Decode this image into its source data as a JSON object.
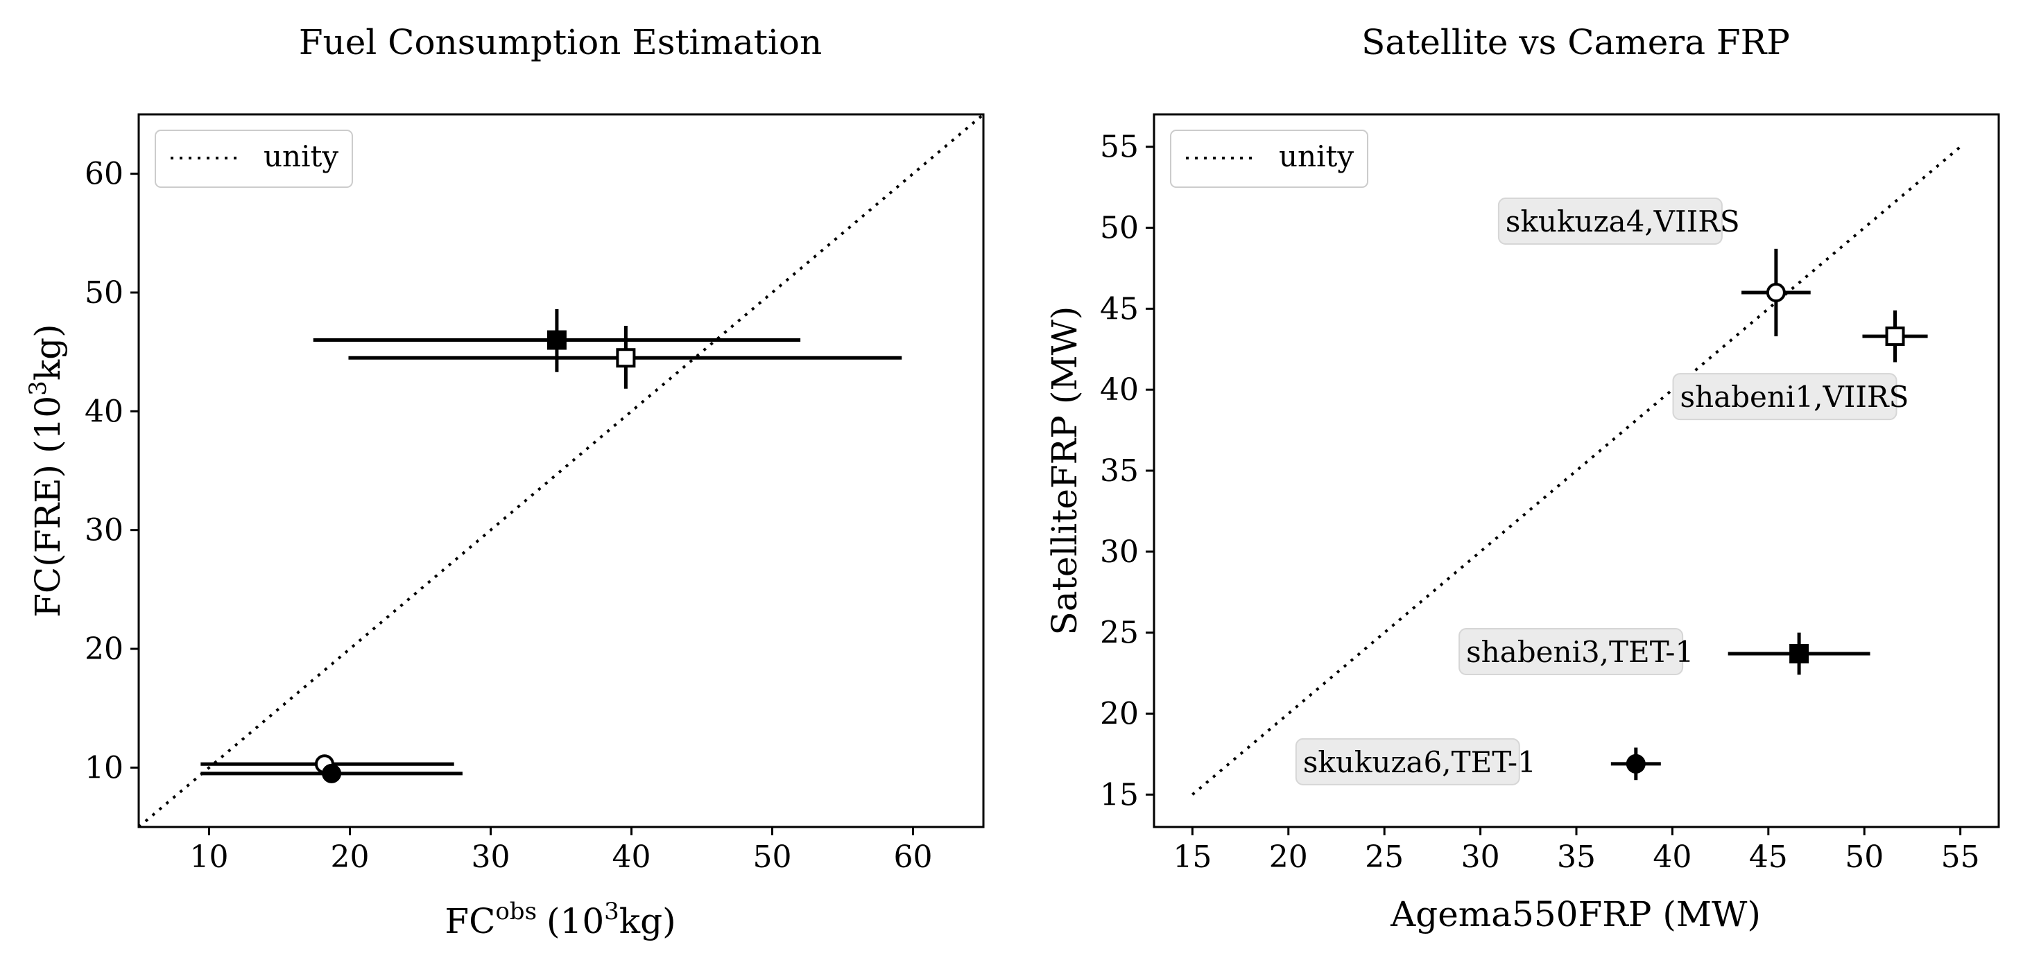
{
  "chart_data": [
    {
      "type": "scatter",
      "title": "Fuel Consumption Estimation",
      "xlabel": "FC",
      "xlabel_sup": "obs",
      "xlabel_suffix": "(10",
      "xlabel_unit_sup": "3",
      "xlabel_unit_tail": "kg)",
      "ylabel": "FC(FRE) (10",
      "ylabel_sup": "3",
      "ylabel_tail": "kg)",
      "xlim": [
        5,
        65
      ],
      "ylim": [
        5,
        65
      ],
      "xticks": [
        10,
        20,
        30,
        40,
        50,
        60
      ],
      "yticks": [
        10,
        20,
        30,
        40,
        50,
        60
      ],
      "grid": false,
      "legend": {
        "position": "top-left",
        "entries": [
          "unity"
        ]
      },
      "unity_line": {
        "x": [
          5,
          65
        ],
        "y": [
          5,
          65
        ]
      },
      "points": [
        {
          "x": 34.7,
          "y": 46.0,
          "xerr": [
            17.4,
            52.0
          ],
          "yerr": [
            43.3,
            48.6
          ],
          "marker": "square-filled"
        },
        {
          "x": 39.6,
          "y": 44.5,
          "xerr": [
            19.9,
            59.2
          ],
          "yerr": [
            41.9,
            47.2
          ],
          "marker": "square-open"
        },
        {
          "x": 18.2,
          "y": 10.3,
          "xerr": [
            9.4,
            27.4
          ],
          "yerr": [
            10.3,
            10.3
          ],
          "marker": "circle-open"
        },
        {
          "x": 18.7,
          "y": 9.5,
          "xerr": [
            9.4,
            28.0
          ],
          "yerr": [
            9.5,
            9.5
          ],
          "marker": "circle-filled"
        }
      ]
    },
    {
      "type": "scatter",
      "title": "Satellite vs Camera FRP",
      "xlabel": "Agema550FRP (MW)",
      "ylabel": "SatelliteFRP (MW)",
      "xlim": [
        13,
        57
      ],
      "ylim": [
        13,
        57
      ],
      "xticks": [
        15,
        20,
        25,
        30,
        35,
        40,
        45,
        50,
        55
      ],
      "yticks": [
        15,
        20,
        25,
        30,
        35,
        40,
        45,
        50,
        55
      ],
      "grid": false,
      "legend": {
        "position": "top-left",
        "entries": [
          "unity"
        ]
      },
      "unity_line": {
        "x": [
          15,
          55
        ],
        "y": [
          15,
          55
        ]
      },
      "points": [
        {
          "x": 45.4,
          "y": 46.0,
          "xerr": [
            43.6,
            47.2
          ],
          "yerr": [
            43.3,
            48.7
          ],
          "marker": "circle-open",
          "label": "skukuza4,VIIRS",
          "label_anchor": "left-above"
        },
        {
          "x": 51.6,
          "y": 43.3,
          "xerr": [
            49.9,
            53.3
          ],
          "yerr": [
            41.7,
            44.9
          ],
          "marker": "square-open",
          "label": "shabeni1,VIIRS",
          "label_anchor": "below-left"
        },
        {
          "x": 46.6,
          "y": 23.7,
          "xerr": [
            42.9,
            50.3
          ],
          "yerr": [
            22.4,
            25.0
          ],
          "marker": "square-filled",
          "label": "shabeni3,TET-1",
          "label_anchor": "left"
        },
        {
          "x": 38.1,
          "y": 16.9,
          "xerr": [
            36.8,
            39.4
          ],
          "yerr": [
            15.9,
            17.9
          ],
          "marker": "circle-filled",
          "label": "skukuza6,TET-1",
          "label_anchor": "left"
        }
      ]
    }
  ]
}
